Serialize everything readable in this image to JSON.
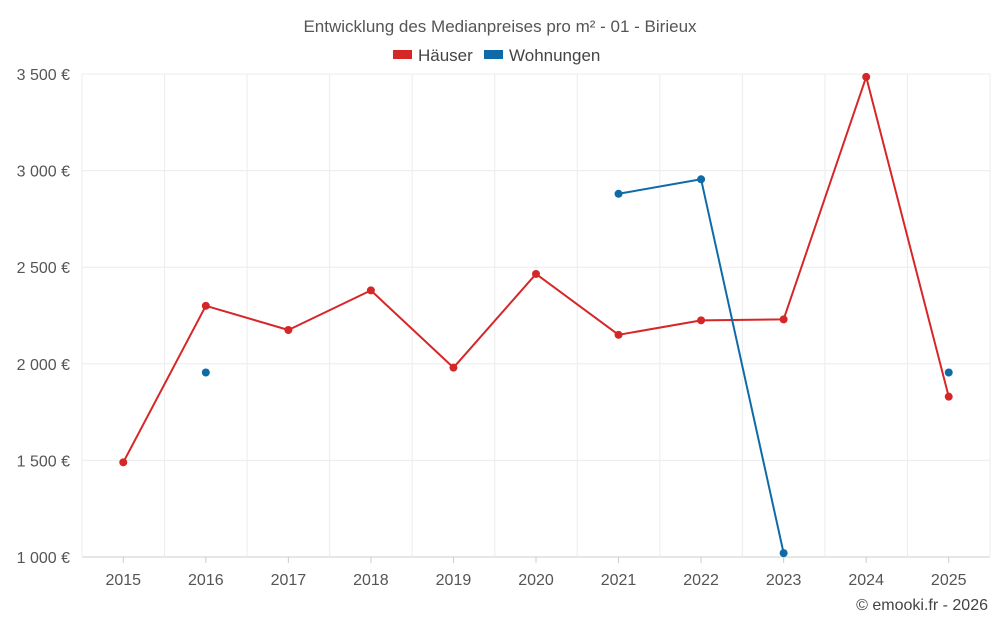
{
  "chart_data": {
    "type": "line",
    "title": "Entwicklung des Medianpreises pro m² - 01 - Birieux",
    "xlabel": "",
    "ylabel": "",
    "categories": [
      "2015",
      "2016",
      "2017",
      "2018",
      "2019",
      "2020",
      "2021",
      "2022",
      "2023",
      "2024",
      "2025"
    ],
    "ylim": [
      1000,
      3500
    ],
    "yticks": [
      1000,
      1500,
      2000,
      2500,
      3000,
      3500
    ],
    "ytick_labels": [
      "1 000 €",
      "1 500 €",
      "2 000 €",
      "2 500 €",
      "3 000 €",
      "3 500 €"
    ],
    "grid": true,
    "legend_position": "top-center",
    "series": [
      {
        "name": "Häuser",
        "color": "#d62728",
        "values": [
          1490,
          2300,
          2175,
          2380,
          1980,
          2465,
          2150,
          2225,
          2230,
          3485,
          1830
        ]
      },
      {
        "name": "Wohnungen",
        "color": "#0e6ba8",
        "values": [
          null,
          1955,
          null,
          null,
          null,
          null,
          2880,
          2955,
          1020,
          null,
          1955
        ]
      }
    ]
  },
  "credit": "© emooki.fr - 2026"
}
